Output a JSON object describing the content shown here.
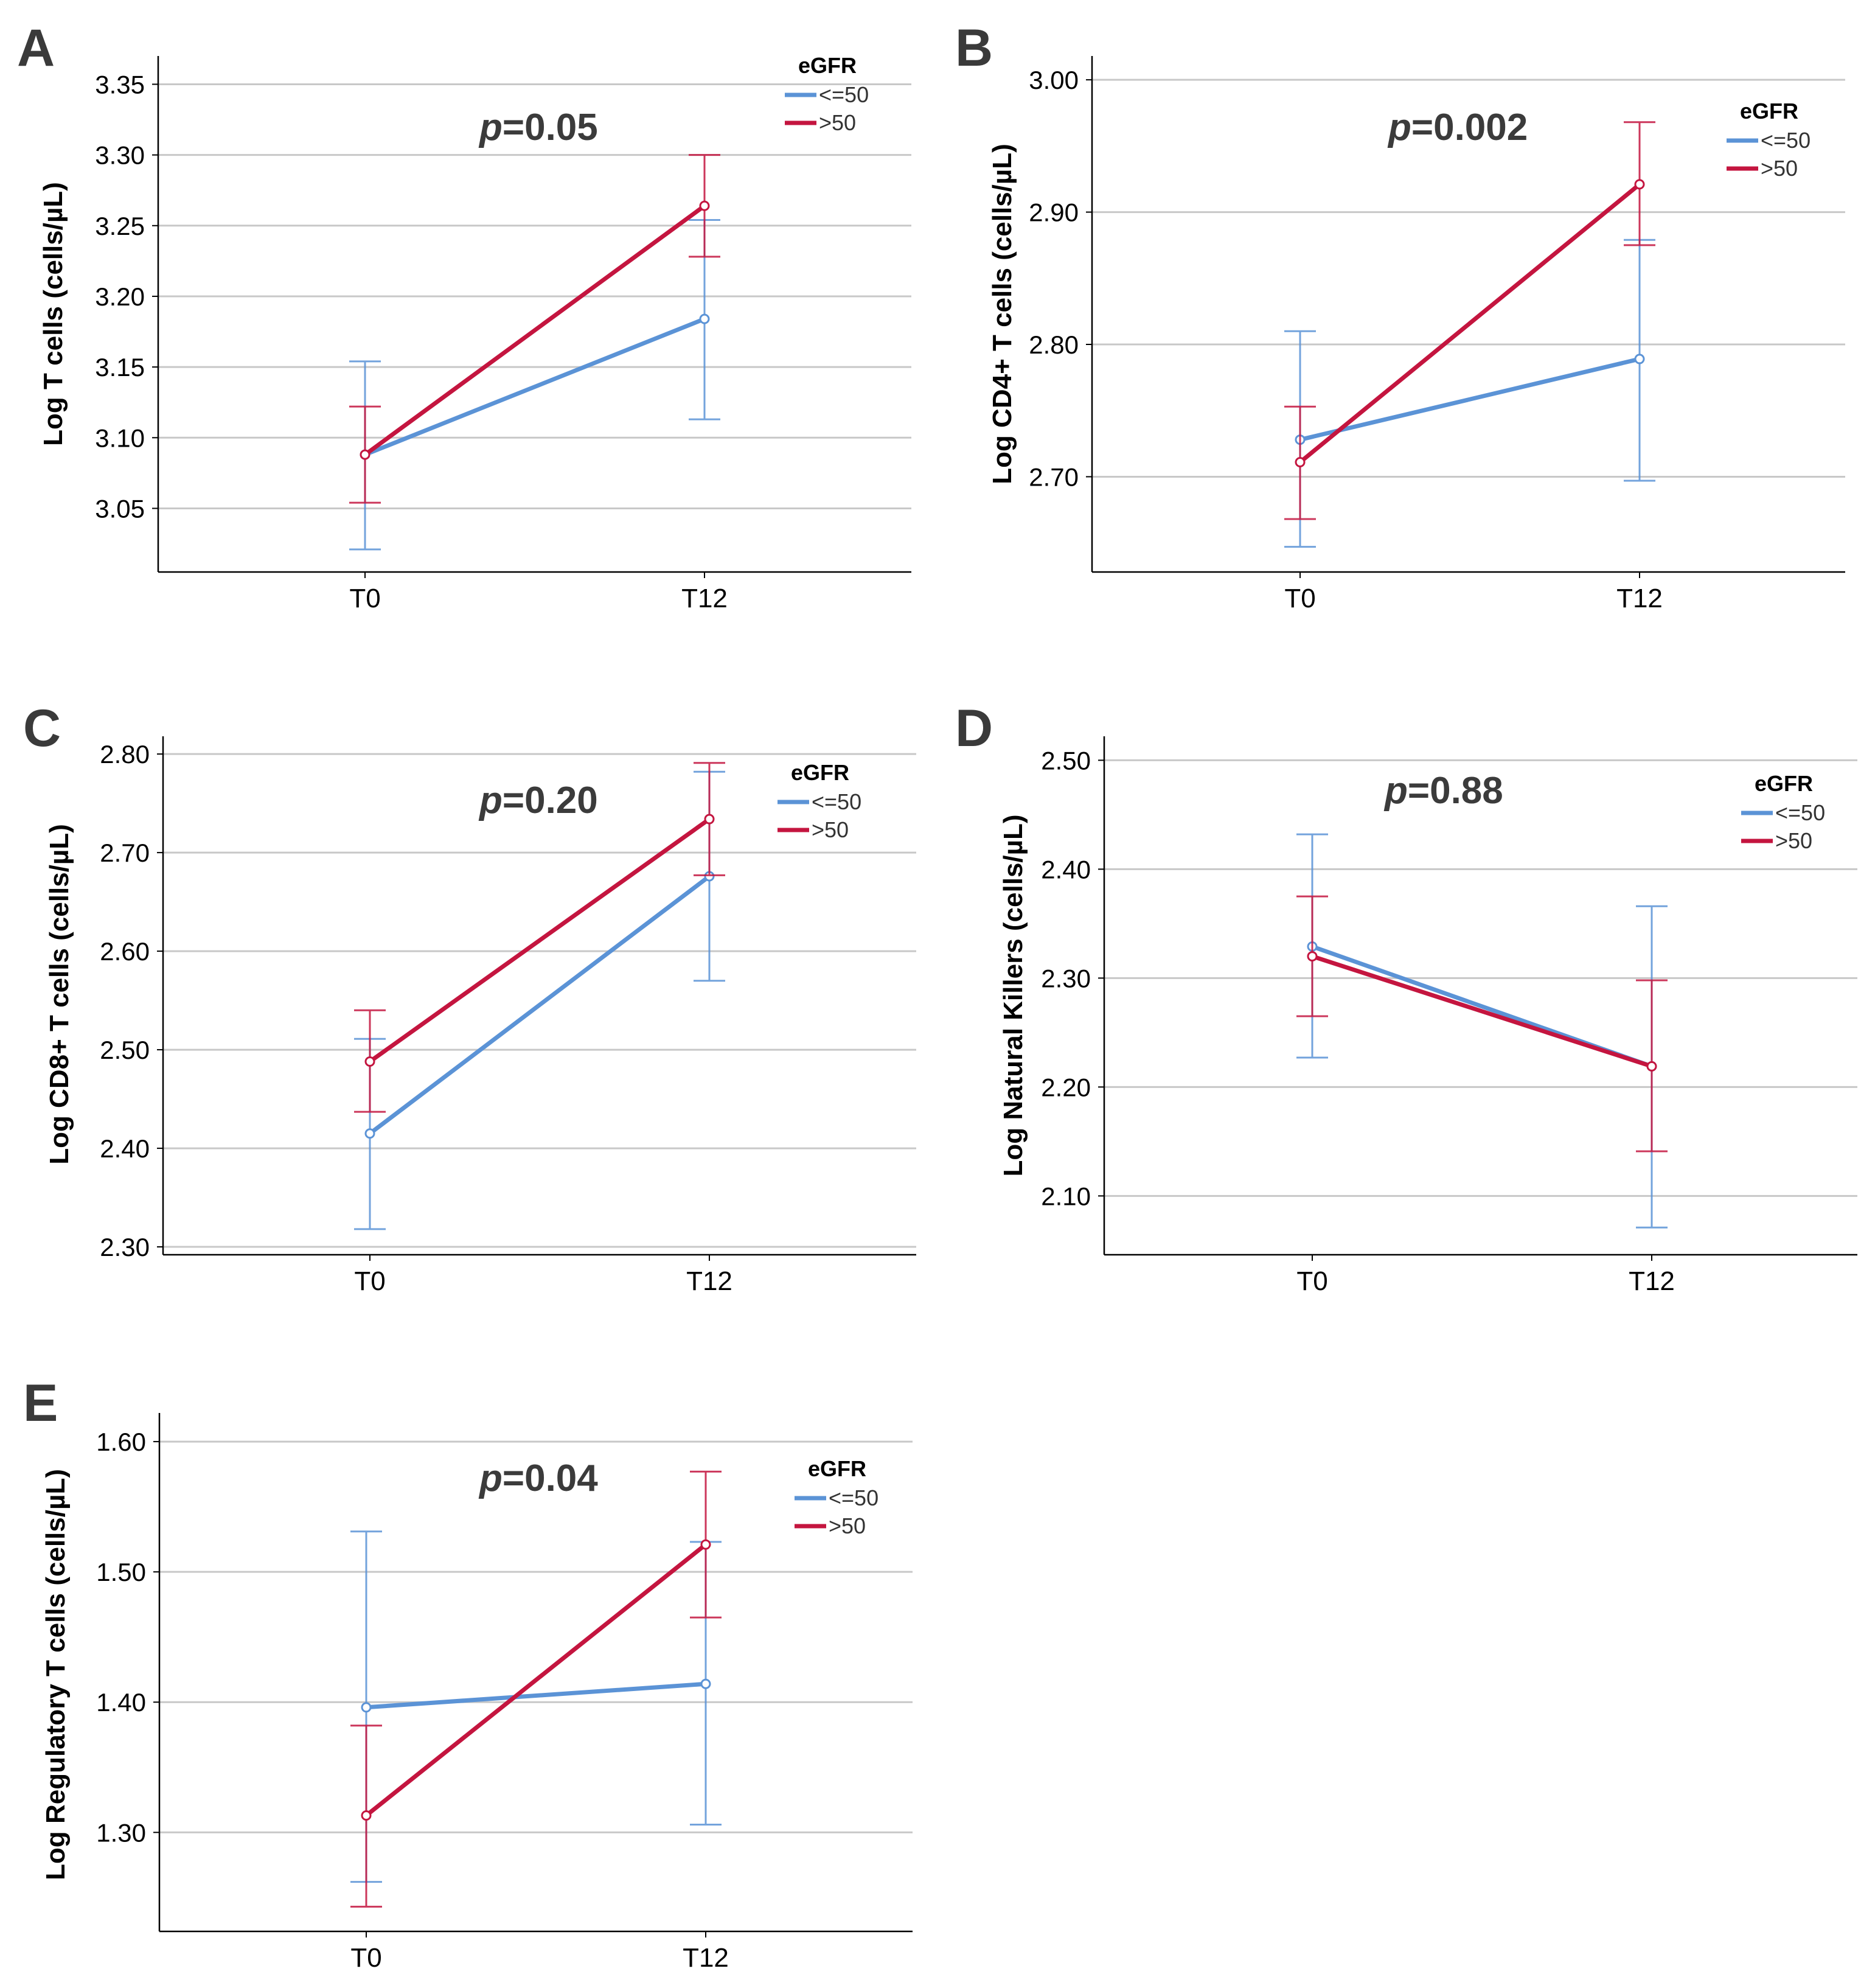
{
  "chart_data": [
    {
      "type": "line",
      "panel": "A",
      "p_value_prefix": "p",
      "p_value_suffix": "=0.05",
      "ylabel": "Log T cells (cells/µL)",
      "categories": [
        "T0",
        "T12"
      ],
      "yticks": [
        "3.05",
        "3.10",
        "3.15",
        "3.20",
        "3.25",
        "3.30",
        "3.35"
      ],
      "ylim": [
        3.005,
        3.37
      ],
      "legend": {
        "title": "eGFR",
        "position": "top-right"
      },
      "series": [
        {
          "name": "<=50",
          "values": [
            3.088,
            3.184
          ],
          "lower": [
            3.021,
            3.113
          ],
          "upper": [
            3.154,
            3.254
          ]
        },
        {
          "name": ">50",
          "values": [
            3.088,
            3.264
          ],
          "lower": [
            3.054,
            3.228
          ],
          "upper": [
            3.122,
            3.3
          ]
        }
      ]
    },
    {
      "type": "line",
      "panel": "B",
      "p_value_prefix": "p",
      "p_value_suffix": "=0.002",
      "ylabel": "Log CD4+ T cells (cells/µL)",
      "categories": [
        "T0",
        "T12"
      ],
      "yticks": [
        "2.70",
        "2.80",
        "2.90",
        "3.00"
      ],
      "ylim": [
        2.628,
        3.018
      ],
      "legend": {
        "title": "eGFR",
        "position": "top-right"
      },
      "series": [
        {
          "name": "<=50",
          "values": [
            2.728,
            2.789
          ],
          "lower": [
            2.647,
            2.697
          ],
          "upper": [
            2.81,
            2.879
          ]
        },
        {
          "name": ">50",
          "values": [
            2.711,
            2.921
          ],
          "lower": [
            2.668,
            2.875
          ],
          "upper": [
            2.753,
            2.968
          ]
        }
      ]
    },
    {
      "type": "line",
      "panel": "C",
      "p_value_prefix": "p",
      "p_value_suffix": "=0.20",
      "ylabel": "Log CD8+ T cells (cells/µL)",
      "categories": [
        "T0",
        "T12"
      ],
      "yticks": [
        "2.30",
        "2.40",
        "2.50",
        "2.60",
        "2.70",
        "2.80"
      ],
      "ylim": [
        2.292,
        2.818
      ],
      "legend": {
        "title": "eGFR",
        "position": "top-right"
      },
      "series": [
        {
          "name": "<=50",
          "values": [
            2.415,
            2.676
          ],
          "lower": [
            2.318,
            2.57
          ],
          "upper": [
            2.511,
            2.782
          ]
        },
        {
          "name": ">50",
          "values": [
            2.488,
            2.734
          ],
          "lower": [
            2.437,
            2.677
          ],
          "upper": [
            2.54,
            2.791
          ]
        }
      ]
    },
    {
      "type": "line",
      "panel": "D",
      "p_value_prefix": "p",
      "p_value_suffix": "=0.88",
      "ylabel": "Log Natural Killers (cells/µL)",
      "categories": [
        "T0",
        "T12"
      ],
      "yticks": [
        "2.10",
        "2.20",
        "2.30",
        "2.40",
        "2.50"
      ],
      "ylim": [
        2.046,
        2.522
      ],
      "legend": {
        "title": "eGFR",
        "position": "top-right"
      },
      "series": [
        {
          "name": "<=50",
          "values": [
            2.329,
            2.219
          ],
          "lower": [
            2.227,
            2.071
          ],
          "upper": [
            2.432,
            2.366
          ]
        },
        {
          "name": ">50",
          "values": [
            2.32,
            2.219
          ],
          "lower": [
            2.265,
            2.141
          ],
          "upper": [
            2.375,
            2.298
          ]
        }
      ]
    },
    {
      "type": "line",
      "panel": "E",
      "p_value_prefix": "p",
      "p_value_suffix": "=0.04",
      "ylabel": "Log Regulatory T cells (cells/µL)",
      "categories": [
        "T0",
        "T12"
      ],
      "yticks": [
        "1.30",
        "1.40",
        "1.50",
        "1.60"
      ],
      "ylim": [
        1.224,
        1.622
      ],
      "legend": {
        "title": "eGFR",
        "position": "top-right"
      },
      "series": [
        {
          "name": "<=50",
          "values": [
            1.396,
            1.414
          ],
          "lower": [
            1.262,
            1.306
          ],
          "upper": [
            1.531,
            1.523
          ]
        },
        {
          "name": ">50",
          "values": [
            1.313,
            1.521
          ],
          "lower": [
            1.243,
            1.465
          ],
          "upper": [
            1.382,
            1.577
          ]
        }
      ]
    }
  ],
  "colors": {
    "le50": "#5b93d6",
    "gt50": "#c4153f",
    "grid": "#c8c8c8",
    "axis": "#000000"
  }
}
